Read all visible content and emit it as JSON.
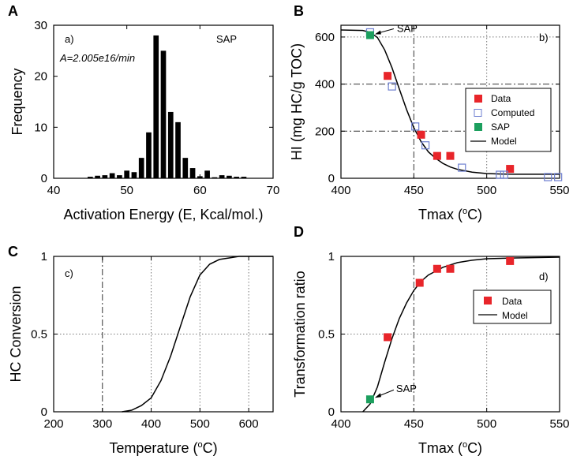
{
  "chart_data": [
    {
      "id": "A",
      "type": "bar",
      "panel_letter": "A",
      "subtitle": "a)",
      "annotation": "SAP",
      "note": "A=2.005e16/min",
      "xlabel": "Activation Energy (E, Kcal/mol.)",
      "ylabel": "Frequency",
      "xlim": [
        40,
        70
      ],
      "ylim": [
        0,
        30
      ],
      "xticks": [
        40,
        50,
        60,
        70
      ],
      "yticks": [
        0,
        10,
        20,
        30
      ],
      "x": [
        45,
        46,
        47,
        48,
        49,
        50,
        51,
        52,
        53,
        54,
        55,
        56,
        57,
        58,
        59,
        60,
        61,
        62,
        63,
        64,
        65,
        66
      ],
      "values": [
        0.3,
        0.5,
        0.6,
        1.0,
        0.6,
        1.5,
        1.2,
        4.0,
        9.0,
        28.0,
        25.0,
        13.0,
        11.0,
        4.0,
        2.0,
        0.4,
        1.5,
        0.2,
        0.6,
        0.5,
        0.3,
        0.3
      ]
    },
    {
      "id": "B",
      "type": "scatter",
      "panel_letter": "B",
      "subtitle": "b)",
      "xlabel_base": "Tmax (",
      "xlabel_sup": "o",
      "xlabel_end": "C)",
      "ylabel": "HI (mg HC/g TOC)",
      "xlim": [
        400,
        550
      ],
      "ylim": [
        0,
        650
      ],
      "xticks": [
        400,
        450,
        500,
        550
      ],
      "yticks": [
        0,
        200,
        400,
        600
      ],
      "dashed_h": [
        200,
        400
      ],
      "dashed_v": [
        450
      ],
      "dotted_h": [
        600
      ],
      "dotted_v": [
        500
      ],
      "sap_label": "SAP",
      "series": [
        {
          "name": "Data",
          "marker": "filled-square",
          "color": "#e8252a",
          "x": [
            432,
            455,
            466,
            475,
            516
          ],
          "y": [
            435,
            185,
            95,
            95,
            40
          ]
        },
        {
          "name": "Computed",
          "marker": "open-square",
          "color": "#6e7fd0",
          "x": [
            420,
            435,
            451,
            458,
            483,
            509,
            512,
            542,
            549
          ],
          "y": [
            620,
            390,
            220,
            140,
            45,
            15,
            15,
            5,
            5
          ]
        },
        {
          "name": "SAP",
          "marker": "filled-square",
          "color": "#1c9f5e",
          "x": [
            420
          ],
          "y": [
            608
          ]
        },
        {
          "name": "Model",
          "marker": "line",
          "color": "#000000",
          "x": [
            400,
            415,
            420,
            425,
            430,
            435,
            440,
            445,
            450,
            455,
            460,
            465,
            470,
            475,
            480,
            490,
            500,
            510,
            520,
            530,
            550
          ],
          "y": [
            630,
            628,
            620,
            598,
            545,
            470,
            380,
            292,
            215,
            155,
            112,
            85,
            63,
            48,
            38,
            26,
            20,
            18,
            17,
            17,
            17
          ]
        }
      ]
    },
    {
      "id": "C",
      "type": "line",
      "panel_letter": "C",
      "subtitle": "c)",
      "xlabel_base": "Temperature (",
      "xlabel_sup": "o",
      "xlabel_end": "C)",
      "ylabel": "HC Conversion",
      "xlim": [
        200,
        650
      ],
      "ylim": [
        0,
        1
      ],
      "xticks": [
        200,
        300,
        400,
        500,
        600
      ],
      "ytick_labels": [
        "0",
        "0.5",
        "1"
      ],
      "yticks": [
        0,
        0.5,
        1
      ],
      "dashed_v": [
        300
      ],
      "dotted_v": [
        400,
        500,
        600
      ],
      "dotted_h": [
        0.5
      ],
      "series": [
        {
          "name": "HC Conversion",
          "color": "#000000",
          "x": [
            340,
            360,
            380,
            400,
            420,
            440,
            460,
            480,
            500,
            520,
            540,
            560,
            580,
            600,
            650
          ],
          "y": [
            0.0,
            0.01,
            0.04,
            0.09,
            0.2,
            0.36,
            0.55,
            0.74,
            0.88,
            0.95,
            0.98,
            0.99,
            1.0,
            1.0,
            1.0
          ]
        }
      ]
    },
    {
      "id": "D",
      "type": "scatter",
      "panel_letter": "D",
      "subtitle": "d)",
      "xlabel_base": "Tmax (",
      "xlabel_sup": "o",
      "xlabel_end": "C)",
      "ylabel": "Transformation ratio",
      "xlim": [
        400,
        550
      ],
      "ylim": [
        0,
        1
      ],
      "xticks": [
        400,
        450,
        500,
        550
      ],
      "ytick_labels": [
        "0",
        "0.5",
        "1"
      ],
      "yticks": [
        0,
        0.5,
        1
      ],
      "dashed_v": [
        450
      ],
      "dotted_v": [
        500
      ],
      "dotted_h": [
        0.5
      ],
      "sap_label": "SAP",
      "series": [
        {
          "name": "Data",
          "marker": "filled-square",
          "color": "#e8252a",
          "x": [
            432,
            454,
            466,
            475,
            516
          ],
          "y": [
            0.48,
            0.83,
            0.92,
            0.92,
            0.97
          ]
        },
        {
          "name": "SAP",
          "marker": "filled-square",
          "color": "#1c9f5e",
          "x": [
            420
          ],
          "y": [
            0.08
          ]
        },
        {
          "name": "Model",
          "marker": "line",
          "color": "#000000",
          "x": [
            415,
            420,
            425,
            430,
            435,
            440,
            445,
            450,
            455,
            460,
            470,
            480,
            490,
            500,
            520,
            550
          ],
          "y": [
            0.0,
            0.05,
            0.16,
            0.32,
            0.47,
            0.6,
            0.7,
            0.78,
            0.84,
            0.88,
            0.93,
            0.96,
            0.975,
            0.985,
            0.99,
            0.995
          ]
        }
      ]
    }
  ]
}
